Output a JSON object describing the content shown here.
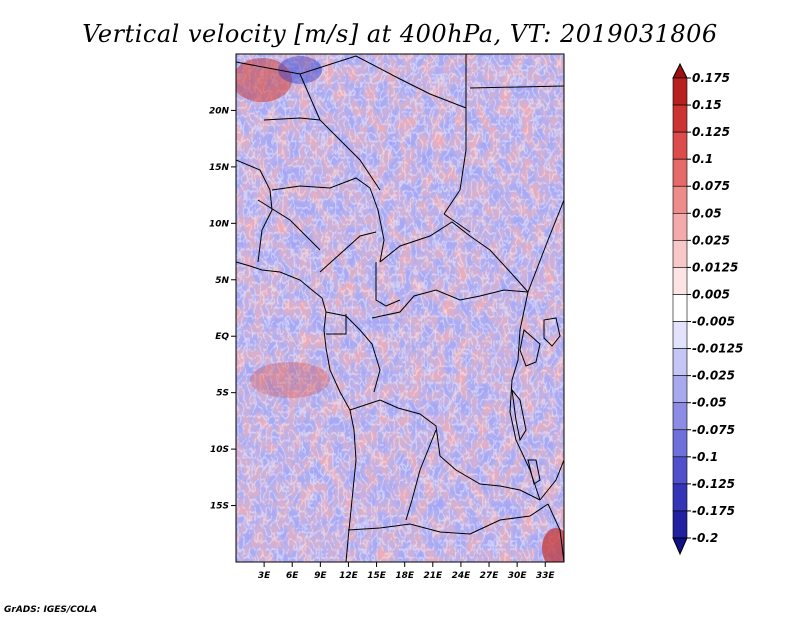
{
  "title": "Vertical velocity [m/s] at 400hPa, VT: 2019031806",
  "credit": "GrADS: IGES/COLA",
  "map": {
    "lon_range": [
      0,
      35
    ],
    "lat_range": [
      -20,
      25
    ],
    "lat_ticks": [
      {
        "value": 20,
        "label": "20N"
      },
      {
        "value": 15,
        "label": "15N"
      },
      {
        "value": 10,
        "label": "10N"
      },
      {
        "value": 5,
        "label": "5N"
      },
      {
        "value": 0,
        "label": "EQ"
      },
      {
        "value": -5,
        "label": "5S"
      },
      {
        "value": -10,
        "label": "10S"
      },
      {
        "value": -15,
        "label": "15S"
      }
    ],
    "lon_ticks": [
      {
        "value": 3,
        "label": "3E"
      },
      {
        "value": 6,
        "label": "6E"
      },
      {
        "value": 9,
        "label": "9E"
      },
      {
        "value": 12,
        "label": "12E"
      },
      {
        "value": 15,
        "label": "15E"
      },
      {
        "value": 18,
        "label": "18E"
      },
      {
        "value": 21,
        "label": "21E"
      },
      {
        "value": 24,
        "label": "24E"
      },
      {
        "value": 27,
        "label": "27E"
      },
      {
        "value": 30,
        "label": "30E"
      },
      {
        "value": 33,
        "label": "33E"
      }
    ]
  },
  "colorbar": {
    "labels": [
      "0.175",
      "0.15",
      "0.125",
      "0.1",
      "0.075",
      "0.05",
      "0.025",
      "0.0125",
      "0.005",
      "-0.005",
      "-0.0125",
      "-0.025",
      "-0.05",
      "-0.075",
      "-0.1",
      "-0.125",
      "-0.175",
      "-0.2"
    ],
    "colors": [
      "#a01010",
      "#b82020",
      "#cc3434",
      "#dc4c4c",
      "#e66a6a",
      "#ee8c8c",
      "#f4aaaa",
      "#f8c8c8",
      "#fce4e4",
      "#ffffff",
      "#e2e2fc",
      "#c6c6f6",
      "#a8a8ee",
      "#8c8ce6",
      "#7070dc",
      "#5050cc",
      "#3434b8",
      "#2020a0",
      "#10108a"
    ]
  }
}
